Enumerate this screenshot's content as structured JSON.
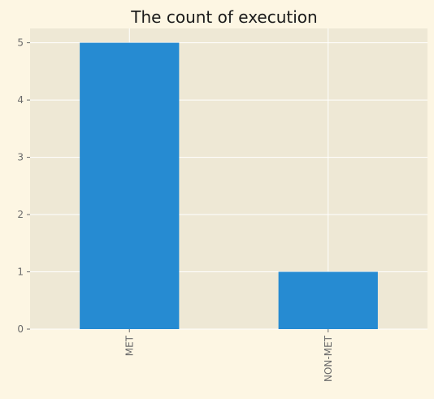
{
  "chart_data": {
    "type": "bar",
    "title": "The count of execution",
    "xlabel": "",
    "ylabel": "",
    "categories": [
      "MET",
      "NON-MET"
    ],
    "values": [
      5,
      1
    ],
    "ylim": [
      0,
      5.25
    ],
    "yticks": [
      0,
      1,
      2,
      3,
      4,
      5
    ],
    "grid": true,
    "colors": {
      "background": "#fdf6e3",
      "plot_area": "#eee8d5",
      "grid": "#ffffff",
      "bar": "#268bd2"
    }
  }
}
